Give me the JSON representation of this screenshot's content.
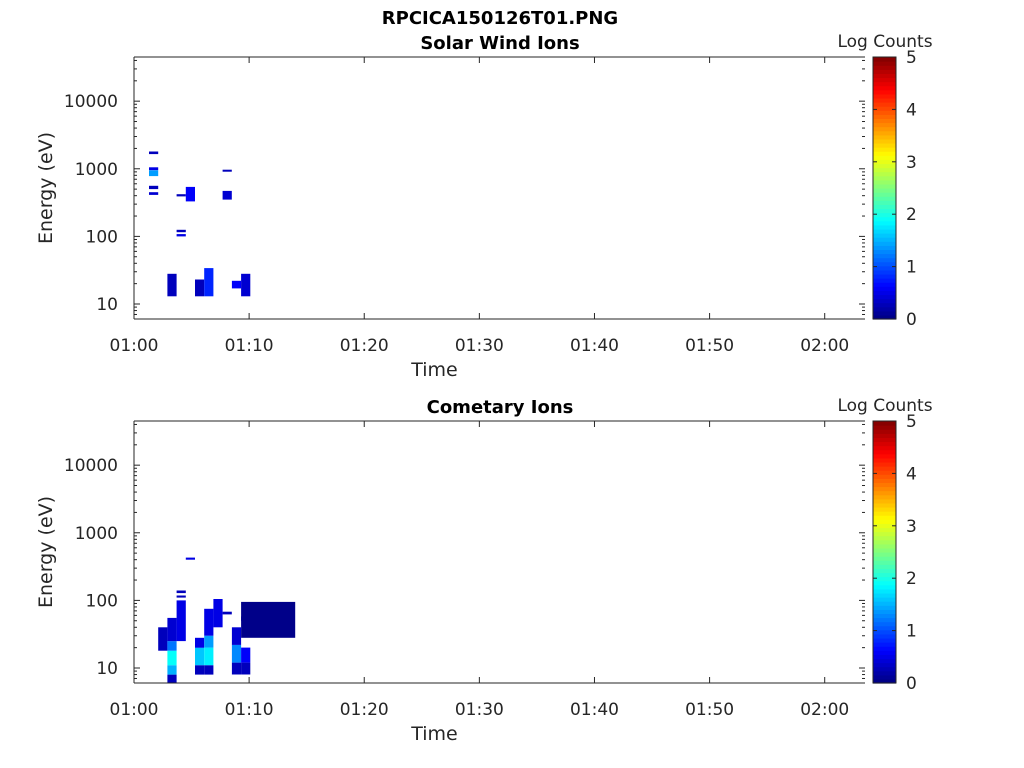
{
  "figure_title": "RPCICA150126T01.PNG",
  "colormap": [
    "#00007f",
    "#0000ff",
    "#007fff",
    "#00ffff",
    "#7fff7f",
    "#ffff00",
    "#ff7f00",
    "#ff0000",
    "#7f0000"
  ],
  "chart_data": [
    {
      "type": "heatmap",
      "title": "Solar Wind Ions",
      "xlabel": "Time",
      "ylabel": "Energy (eV)",
      "x_ticks": [
        "01:00",
        "01:10",
        "01:20",
        "01:30",
        "01:40",
        "01:50",
        "02:00"
      ],
      "x_tick_minutes": [
        0,
        10,
        20,
        30,
        40,
        50,
        60
      ],
      "xlim_minutes": [
        0,
        63.5
      ],
      "y_scale": "log",
      "y_ticks": [
        "10",
        "100",
        "1000",
        "10000"
      ],
      "y_tick_values": [
        10,
        100,
        1000,
        10000
      ],
      "ylim": [
        6,
        45000
      ],
      "colorbar": {
        "label": "Log Counts",
        "range": [
          0,
          5
        ],
        "ticks": [
          "0",
          "1",
          "2",
          "3",
          "4",
          "5"
        ]
      },
      "cells": [
        {
          "t0": 1.3,
          "t1": 2.1,
          "e0": 1650,
          "e1": 1800,
          "v": 0.3
        },
        {
          "t0": 1.3,
          "t1": 2.1,
          "e0": 950,
          "e1": 1050,
          "v": 0.5
        },
        {
          "t0": 1.3,
          "t1": 2.1,
          "e0": 780,
          "e1": 950,
          "v": 1.4
        },
        {
          "t0": 1.3,
          "t1": 2.1,
          "e0": 500,
          "e1": 560,
          "v": 0.3
        },
        {
          "t0": 1.3,
          "t1": 2.1,
          "e0": 410,
          "e1": 450,
          "v": 0.4
        },
        {
          "t0": 2.9,
          "t1": 3.7,
          "e0": 13,
          "e1": 28,
          "v": 0.3
        },
        {
          "t0": 3.7,
          "t1": 4.5,
          "e0": 115,
          "e1": 125,
          "v": 0.3
        },
        {
          "t0": 3.7,
          "t1": 4.5,
          "e0": 100,
          "e1": 108,
          "v": 0.5
        },
        {
          "t0": 3.7,
          "t1": 4.5,
          "e0": 390,
          "e1": 420,
          "v": 0.3
        },
        {
          "t0": 4.5,
          "t1": 5.3,
          "e0": 330,
          "e1": 540,
          "v": 0.6
        },
        {
          "t0": 5.3,
          "t1": 6.1,
          "e0": 13,
          "e1": 23,
          "v": 0.3
        },
        {
          "t0": 6.1,
          "t1": 6.9,
          "e0": 13,
          "e1": 34,
          "v": 0.8
        },
        {
          "t0": 7.7,
          "t1": 8.5,
          "e0": 920,
          "e1": 970,
          "v": 0.3
        },
        {
          "t0": 7.7,
          "t1": 8.5,
          "e0": 350,
          "e1": 470,
          "v": 0.4
        },
        {
          "t0": 8.5,
          "t1": 9.3,
          "e0": 17,
          "e1": 22,
          "v": 0.6
        },
        {
          "t0": 9.3,
          "t1": 10.1,
          "e0": 13,
          "e1": 28,
          "v": 0.4
        }
      ]
    },
    {
      "type": "heatmap",
      "title": "Cometary Ions",
      "xlabel": "Time",
      "ylabel": "Energy (eV)",
      "x_ticks": [
        "01:00",
        "01:10",
        "01:20",
        "01:30",
        "01:40",
        "01:50",
        "02:00"
      ],
      "x_tick_minutes": [
        0,
        10,
        20,
        30,
        40,
        50,
        60
      ],
      "xlim_minutes": [
        0,
        63.5
      ],
      "y_scale": "log",
      "y_ticks": [
        "10",
        "100",
        "1000",
        "10000"
      ],
      "y_tick_values": [
        10,
        100,
        1000,
        10000
      ],
      "ylim": [
        6,
        45000
      ],
      "colorbar": {
        "label": "Log Counts",
        "range": [
          0,
          5
        ],
        "ticks": [
          "0",
          "1",
          "2",
          "3",
          "4",
          "5"
        ]
      },
      "cells": [
        {
          "t0": 2.1,
          "t1": 2.9,
          "e0": 18,
          "e1": 40,
          "v": 0.3
        },
        {
          "t0": 2.9,
          "t1": 3.7,
          "e0": 6,
          "e1": 8,
          "v": 0.3
        },
        {
          "t0": 2.9,
          "t1": 3.7,
          "e0": 8,
          "e1": 11,
          "v": 1.5
        },
        {
          "t0": 2.9,
          "t1": 3.7,
          "e0": 11,
          "e1": 18,
          "v": 1.9
        },
        {
          "t0": 2.9,
          "t1": 3.7,
          "e0": 18,
          "e1": 25,
          "v": 1.2
        },
        {
          "t0": 2.9,
          "t1": 3.7,
          "e0": 25,
          "e1": 55,
          "v": 0.4
        },
        {
          "t0": 3.7,
          "t1": 4.5,
          "e0": 25,
          "e1": 100,
          "v": 0.5
        },
        {
          "t0": 3.7,
          "t1": 4.5,
          "e0": 128,
          "e1": 140,
          "v": 0.3
        },
        {
          "t0": 3.7,
          "t1": 4.5,
          "e0": 110,
          "e1": 118,
          "v": 0.3
        },
        {
          "t0": 4.5,
          "t1": 5.3,
          "e0": 400,
          "e1": 430,
          "v": 0.5
        },
        {
          "t0": 5.3,
          "t1": 6.1,
          "e0": 8,
          "e1": 11,
          "v": 0.3
        },
        {
          "t0": 5.3,
          "t1": 6.1,
          "e0": 11,
          "e1": 20,
          "v": 1.6
        },
        {
          "t0": 5.3,
          "t1": 6.1,
          "e0": 20,
          "e1": 28,
          "v": 0.5
        },
        {
          "t0": 6.1,
          "t1": 6.9,
          "e0": 8,
          "e1": 11,
          "v": 0.3
        },
        {
          "t0": 6.1,
          "t1": 6.9,
          "e0": 11,
          "e1": 20,
          "v": 1.8
        },
        {
          "t0": 6.1,
          "t1": 6.9,
          "e0": 20,
          "e1": 30,
          "v": 1.4
        },
        {
          "t0": 6.1,
          "t1": 6.9,
          "e0": 30,
          "e1": 75,
          "v": 0.5
        },
        {
          "t0": 6.9,
          "t1": 7.7,
          "e0": 40,
          "e1": 105,
          "v": 0.5
        },
        {
          "t0": 7.7,
          "t1": 8.5,
          "e0": 62,
          "e1": 68,
          "v": 0.3
        },
        {
          "t0": 8.5,
          "t1": 9.3,
          "e0": 8,
          "e1": 12,
          "v": 0.3
        },
        {
          "t0": 8.5,
          "t1": 9.3,
          "e0": 12,
          "e1": 22,
          "v": 1.3
        },
        {
          "t0": 8.5,
          "t1": 9.3,
          "e0": 22,
          "e1": 40,
          "v": 0.4
        },
        {
          "t0": 9.3,
          "t1": 10.1,
          "e0": 8,
          "e1": 12,
          "v": 0.3
        },
        {
          "t0": 9.3,
          "t1": 10.1,
          "e0": 12,
          "e1": 20,
          "v": 0.6
        },
        {
          "t0": 9.3,
          "t1": 10.1,
          "e0": 50,
          "e1": 58,
          "v": 0.3
        },
        {
          "t0": 9.3,
          "t1": 14.0,
          "e0": 28,
          "e1": 95,
          "v": 0.05
        }
      ]
    }
  ]
}
